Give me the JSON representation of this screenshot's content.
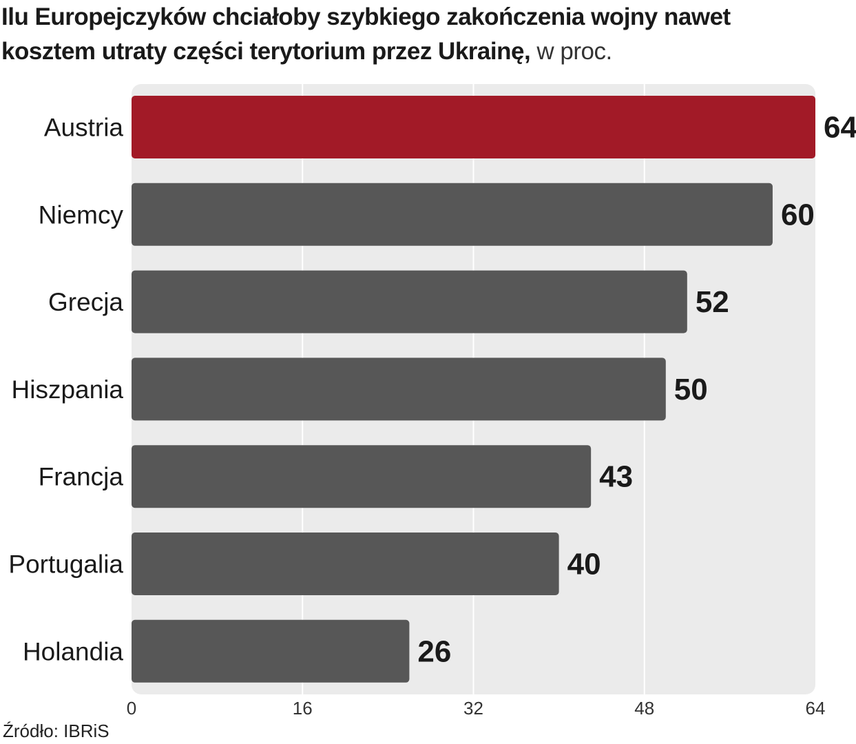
{
  "title": {
    "main": "Ilu Europejczyków chciałoby szybkiego zakończenia wojny nawet kosztem utraty części terytorium przez Ukrainę,",
    "unit": "w proc."
  },
  "source": "Źródło: IBRiS",
  "colors": {
    "highlight": "#a21a27",
    "bar": "#575757",
    "plot_bg": "#ebebeb",
    "grid": "#ffffff",
    "text": "#1a1a1a"
  },
  "chart_data": {
    "type": "bar",
    "orientation": "horizontal",
    "categories": [
      "Austria",
      "Niemcy",
      "Grecja",
      "Hiszpania",
      "Francja",
      "Portugalia",
      "Holandia"
    ],
    "values": [
      64,
      60,
      52,
      50,
      43,
      40,
      26
    ],
    "value_labels": [
      "64",
      "60",
      "52",
      "50",
      "43",
      "40",
      "26"
    ],
    "highlight_index": 0,
    "xlim": [
      0,
      64
    ],
    "xticks": [
      0,
      16,
      32,
      48,
      64
    ],
    "xtick_labels": [
      "0",
      "16",
      "32",
      "48",
      "64"
    ],
    "grid": true
  }
}
